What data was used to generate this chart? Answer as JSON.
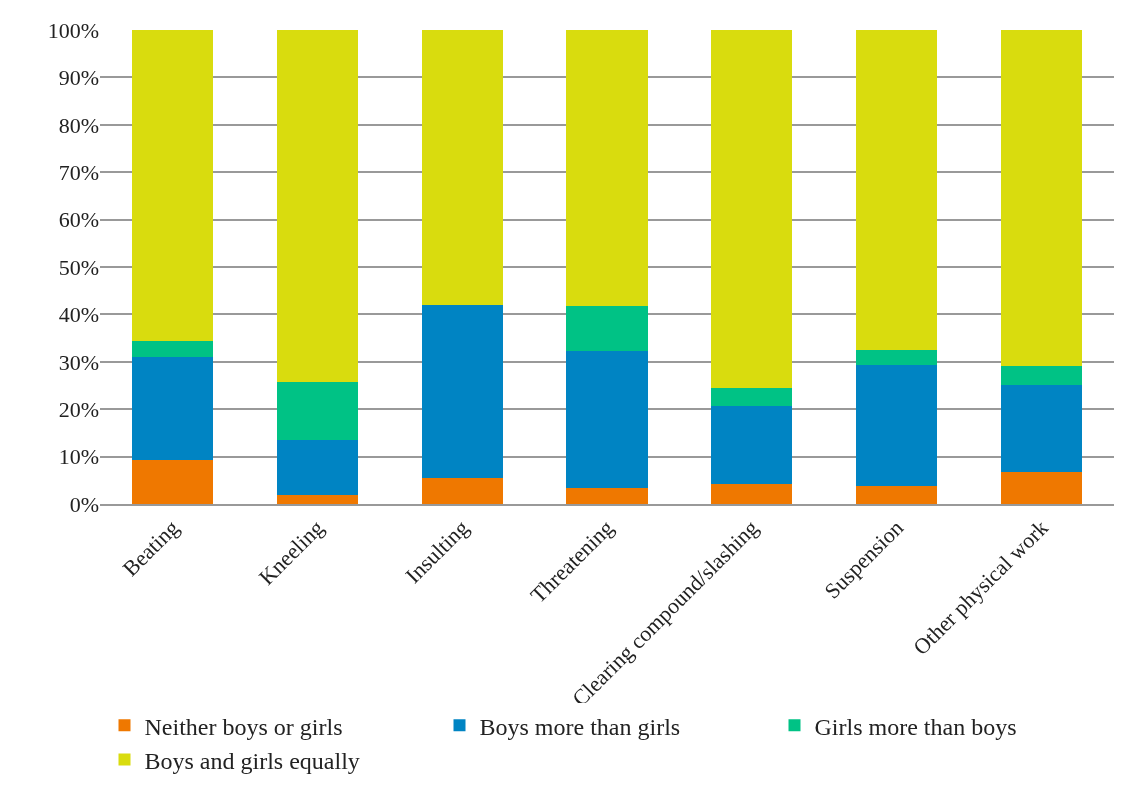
{
  "chart_data": {
    "type": "bar",
    "stacked": true,
    "categories": [
      "Beating",
      "Kneeling",
      "Insulting",
      "Threatening",
      "Clearing compound/slashing",
      "Suspension",
      "Other physical work"
    ],
    "series": [
      {
        "name": "Neither boys or girls",
        "color": "#ef7800",
        "values": [
          9.2,
          1.8,
          5.5,
          3.4,
          4.3,
          3.7,
          6.7
        ]
      },
      {
        "name": "Boys more than girls",
        "color": "#0084c3",
        "values": [
          21.8,
          11.7,
          36.5,
          28.8,
          16.3,
          25.7,
          18.5
        ]
      },
      {
        "name": "Girls more than boys",
        "color": "#00c285",
        "values": [
          3.4,
          12.3,
          0,
          9.5,
          3.9,
          3.1,
          3.9
        ]
      },
      {
        "name": "Boys and girls equally",
        "color": "#d9dc0e",
        "values": [
          65.6,
          74.2,
          58,
          58.3,
          75.5,
          67.5,
          70.9
        ]
      }
    ],
    "ylim": [
      0,
      100
    ],
    "yticks": [
      {
        "value": 0,
        "label": "0%"
      },
      {
        "value": 10,
        "label": "10%"
      },
      {
        "value": 20,
        "label": "20%"
      },
      {
        "value": 30,
        "label": "30%"
      },
      {
        "value": 40,
        "label": "40%"
      },
      {
        "value": 50,
        "label": "50%"
      },
      {
        "value": 60,
        "label": "60%"
      },
      {
        "value": 70,
        "label": "70%"
      },
      {
        "value": 80,
        "label": "80%"
      },
      {
        "value": 90,
        "label": "90%"
      },
      {
        "value": 100,
        "label": "100%"
      }
    ],
    "grid": "y",
    "legend": "bottom"
  }
}
